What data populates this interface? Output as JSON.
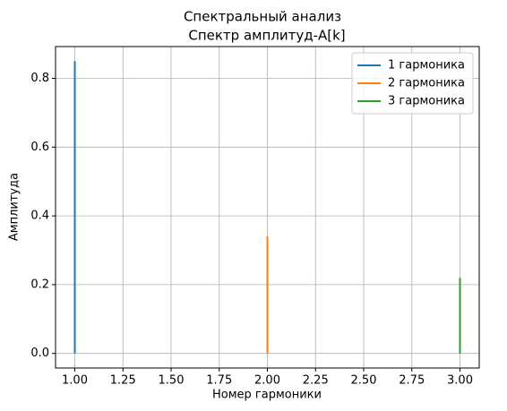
{
  "chart_data": {
    "type": "stem",
    "title": "Спектральный анализ",
    "subtitle": "Спектр амплитуд-A[k]",
    "x_label": "Номер гармоники",
    "y_label": "Амплитуда",
    "series": [
      {
        "name": "1 гармоника",
        "color": "#1f77b4",
        "x": [
          1
        ],
        "values": [
          0.85
        ]
      },
      {
        "name": "2 гармоника",
        "color": "#ff7f0e",
        "x": [
          2
        ],
        "values": [
          0.34
        ]
      },
      {
        "name": "3 гармоника",
        "color": "#2ca02c",
        "x": [
          3
        ],
        "values": [
          0.22
        ]
      }
    ],
    "xlim": [
      0.9,
      3.1
    ],
    "xticks": [
      {
        "value": 1,
        "label": "1.00"
      },
      {
        "value": 1.25,
        "label": "1.25"
      },
      {
        "value": 1.5,
        "label": "1.50"
      },
      {
        "value": 1.75,
        "label": "1.75"
      },
      {
        "value": 2,
        "label": "2.00"
      },
      {
        "value": 2.25,
        "label": "2.25"
      },
      {
        "value": 2.5,
        "label": "2.50"
      },
      {
        "value": 2.75,
        "label": "2.75"
      },
      {
        "value": 3,
        "label": "3.00"
      }
    ],
    "ylim": [
      -0.0425,
      0.8925
    ],
    "yticks": [
      {
        "value": 0,
        "label": "0.0"
      },
      {
        "value": 0.2,
        "label": "0.2"
      },
      {
        "value": 0.4,
        "label": "0.4"
      },
      {
        "value": 0.6,
        "label": "0.6"
      },
      {
        "value": 0.8,
        "label": "0.8"
      }
    ],
    "grid": true,
    "legend": "upper-right"
  }
}
